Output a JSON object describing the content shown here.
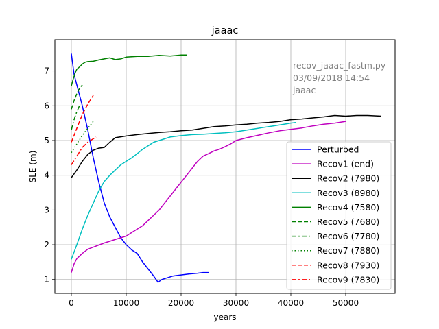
{
  "chart_data": {
    "type": "line",
    "title": "jaaac",
    "xlabel": "years",
    "ylabel": "SLE (m)",
    "xlim": [
      -3000,
      59000
    ],
    "ylim": [
      0.6,
      7.9
    ],
    "xticks": [
      0,
      10000,
      20000,
      30000,
      40000,
      50000
    ],
    "xtick_labels": [
      "0",
      "10000",
      "20000",
      "30000",
      "40000",
      "50000"
    ],
    "yticks": [
      1,
      2,
      3,
      4,
      5,
      6,
      7
    ],
    "ytick_labels": [
      "1",
      "2",
      "3",
      "4",
      "5",
      "6",
      "7"
    ],
    "grid": true,
    "legend_placement": "lower-right",
    "annotation": {
      "lines": [
        "recov_jaaac_fastm.py",
        "03/09/2018 14:54",
        "jaaac"
      ],
      "color": "#808080"
    },
    "series": [
      {
        "name": "Perturbed",
        "color": "#0000ff",
        "dash": "solid",
        "x": [
          0,
          500,
          1000,
          2000,
          3000,
          4000,
          5000,
          6000,
          7000,
          8000,
          9000,
          10000,
          11000,
          12000,
          13000,
          14000,
          15000,
          15800,
          16500,
          17500,
          18500,
          20000,
          21500,
          23000,
          24000,
          25000
        ],
        "y": [
          7.5,
          6.9,
          6.6,
          6.0,
          5.3,
          4.5,
          3.8,
          3.2,
          2.8,
          2.5,
          2.2,
          2.0,
          1.85,
          1.75,
          1.5,
          1.3,
          1.1,
          0.92,
          1.0,
          1.05,
          1.1,
          1.13,
          1.16,
          1.18,
          1.2,
          1.2
        ]
      },
      {
        "name": "Recov1 (end)",
        "color": "#bf00bf",
        "dash": "solid",
        "x": [
          0,
          500,
          1000,
          2000,
          3000,
          4000,
          5000,
          6000,
          7000,
          8000,
          9000,
          10000,
          11000,
          12000,
          13000,
          14000,
          15000,
          16000,
          17000,
          18000,
          19000,
          20000,
          21000,
          22000,
          23000,
          24000,
          25000,
          26000,
          27000,
          28000,
          29000,
          30000,
          32000,
          34000,
          36000,
          38000,
          40000,
          42000,
          44000,
          46000,
          48000,
          50000
        ],
        "y": [
          1.2,
          1.45,
          1.6,
          1.75,
          1.87,
          1.93,
          1.99,
          2.05,
          2.1,
          2.15,
          2.2,
          2.25,
          2.35,
          2.45,
          2.55,
          2.7,
          2.85,
          3.0,
          3.2,
          3.4,
          3.6,
          3.8,
          4.0,
          4.2,
          4.4,
          4.55,
          4.62,
          4.7,
          4.75,
          4.82,
          4.9,
          5.0,
          5.08,
          5.15,
          5.22,
          5.28,
          5.32,
          5.36,
          5.42,
          5.47,
          5.5,
          5.55
        ]
      },
      {
        "name": "Recov2 (7980)",
        "color": "#000000",
        "dash": "solid",
        "x": [
          0,
          1000,
          2000,
          3000,
          4000,
          5000,
          6000,
          7000,
          8000,
          10000,
          12000,
          14000,
          16000,
          18000,
          20000,
          22000,
          24000,
          26000,
          28000,
          30000,
          32000,
          34000,
          36000,
          38000,
          40000,
          42000,
          44000,
          46000,
          48000,
          50000,
          52000,
          54000,
          56500
        ],
        "y": [
          3.93,
          4.15,
          4.4,
          4.6,
          4.72,
          4.78,
          4.8,
          4.95,
          5.08,
          5.13,
          5.17,
          5.2,
          5.23,
          5.25,
          5.28,
          5.3,
          5.35,
          5.4,
          5.42,
          5.45,
          5.47,
          5.5,
          5.52,
          5.55,
          5.6,
          5.62,
          5.65,
          5.68,
          5.72,
          5.7,
          5.72,
          5.72,
          5.7
        ]
      },
      {
        "name": "Recov3 (8980)",
        "color": "#00bfbf",
        "dash": "solid",
        "x": [
          0,
          1000,
          2000,
          3000,
          4000,
          5000,
          6000,
          7000,
          8000,
          9000,
          10000,
          11000,
          12000,
          13000,
          14000,
          15000,
          16000,
          17000,
          18000,
          20000,
          22000,
          24000,
          26000,
          28000,
          30000,
          32000,
          34000,
          36000,
          38000,
          40000,
          41000
        ],
        "y": [
          1.58,
          2.0,
          2.45,
          2.85,
          3.2,
          3.55,
          3.82,
          4.0,
          4.15,
          4.3,
          4.4,
          4.5,
          4.62,
          4.75,
          4.85,
          4.95,
          5.0,
          5.05,
          5.1,
          5.14,
          5.17,
          5.18,
          5.2,
          5.22,
          5.25,
          5.3,
          5.35,
          5.4,
          5.45,
          5.5,
          5.52
        ]
      },
      {
        "name": "Recov4 (7580)",
        "color": "#008000",
        "dash": "solid",
        "x": [
          0,
          300,
          700,
          1000,
          1500,
          2000,
          2500,
          3000,
          4000,
          5000,
          6000,
          7000,
          8000,
          9000,
          10000,
          12000,
          14000,
          16000,
          18000,
          20000,
          21000
        ],
        "y": [
          6.57,
          6.75,
          6.95,
          7.05,
          7.12,
          7.2,
          7.25,
          7.27,
          7.28,
          7.32,
          7.35,
          7.38,
          7.33,
          7.35,
          7.4,
          7.42,
          7.42,
          7.45,
          7.43,
          7.46,
          7.46
        ]
      },
      {
        "name": "Recov5 (7680)",
        "color": "#008000",
        "dash": "dashed",
        "x": [
          0,
          500,
          1000,
          1500,
          2000
        ],
        "y": [
          5.9,
          6.15,
          6.35,
          6.5,
          6.6
        ]
      },
      {
        "name": "Recov6 (7780)",
        "color": "#008000",
        "dash": "dashdot",
        "x": [
          0,
          400,
          800,
          1200,
          1600
        ],
        "y": [
          5.3,
          5.55,
          5.75,
          5.9,
          6.05
        ]
      },
      {
        "name": "Recov7 (7880)",
        "color": "#008000",
        "dash": "dotted",
        "x": [
          0,
          1000,
          2000,
          3000,
          4000
        ],
        "y": [
          4.65,
          4.9,
          5.15,
          5.35,
          5.55
        ]
      },
      {
        "name": "Recov8 (7930)",
        "color": "#ff0000",
        "dash": "dashed",
        "x": [
          0,
          1000,
          2000,
          3000,
          4000
        ],
        "y": [
          4.95,
          5.35,
          5.75,
          6.05,
          6.3
        ]
      },
      {
        "name": "Recov9 (7830)",
        "color": "#ff0000",
        "dash": "dashdot",
        "x": [
          0,
          1000,
          2000,
          3000,
          4500
        ],
        "y": [
          4.3,
          4.55,
          4.8,
          4.95,
          5.1
        ]
      }
    ]
  }
}
